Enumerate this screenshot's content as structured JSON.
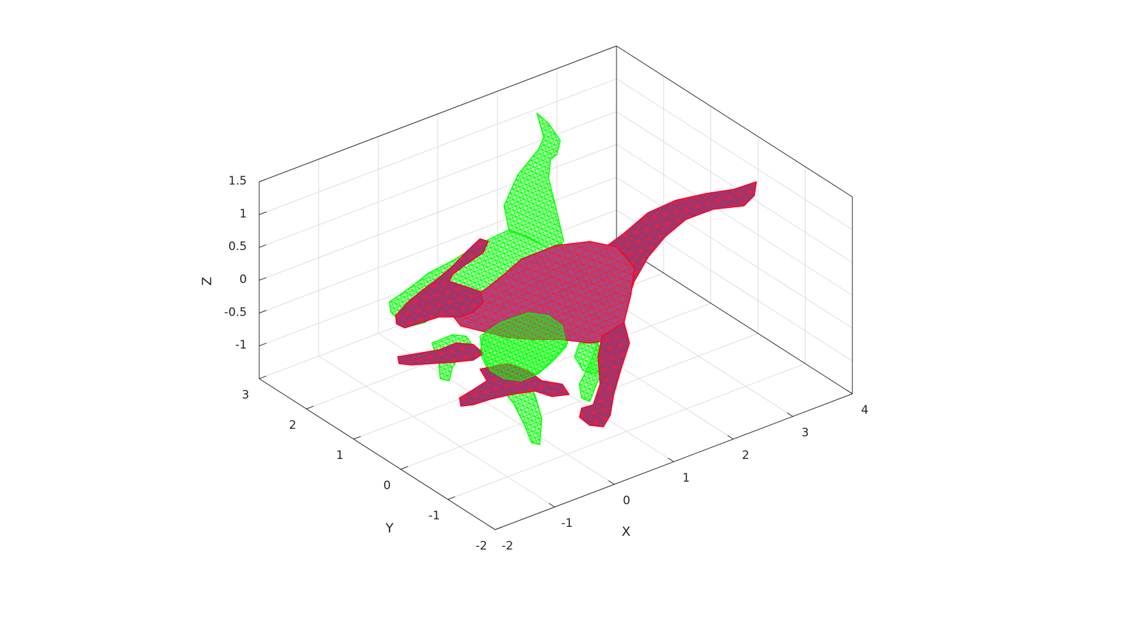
{
  "chart_data": {
    "type": "mesh3d",
    "title": "",
    "xlabel": "X",
    "ylabel": "Y",
    "zlabel": "Z",
    "xlim": [
      -2,
      4
    ],
    "ylim": [
      -2,
      3
    ],
    "zlim": [
      -1.5,
      1.5
    ],
    "xticks": [
      -2,
      -1,
      0,
      1,
      2,
      3,
      4
    ],
    "yticks": [
      -2,
      -1,
      0,
      1,
      2,
      3
    ],
    "zticks": [
      -1,
      -0.5,
      0,
      0.5,
      1,
      1.5
    ],
    "xtick_labels": [
      "-2",
      "-1",
      "0",
      "1",
      "2",
      "3",
      "4"
    ],
    "ytick_labels": [
      "-2",
      "-1",
      "0",
      "1",
      "2",
      "3"
    ],
    "ztick_labels": [
      "-1",
      "-0.5",
      "0",
      "0.5",
      "1",
      "1.5"
    ],
    "grid": true,
    "box": true,
    "series": [
      {
        "mesh": "green-wireframe",
        "face_color": "#00ff00",
        "edge_color": "#00ff00",
        "face_alpha": 0.25
      },
      {
        "mesh": "red-purple-surface",
        "face_color": "#8b2f6e",
        "edge_color": "#ff0020",
        "face_alpha": 0.85
      }
    ]
  }
}
